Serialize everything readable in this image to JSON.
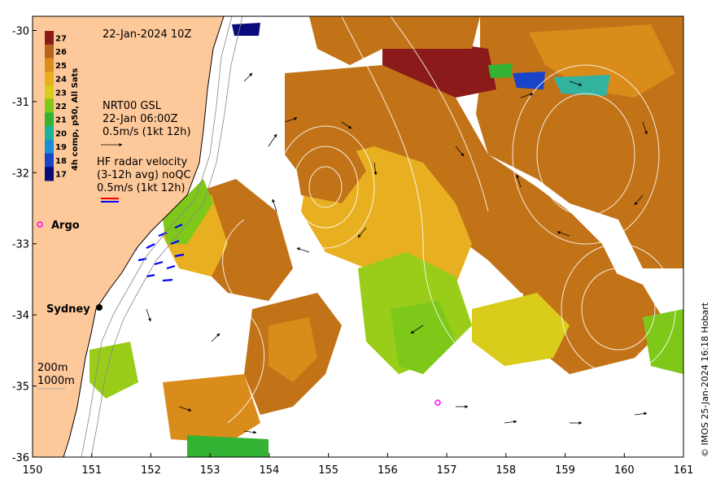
{
  "title_timestamp": "22-Jan-2024 10Z",
  "colorbar": {
    "label": "4h comp, p50, All Sats",
    "ticks": [
      "27",
      "26",
      "25",
      "24",
      "23",
      "22",
      "21",
      "20",
      "19",
      "18",
      "17"
    ],
    "colors": [
      "#8b1a1a",
      "#b5651d",
      "#d98c1a",
      "#e8b020",
      "#d9cc1a",
      "#7ec81a",
      "#33b233",
      "#1ab29a",
      "#1a8ed9",
      "#1a44c8",
      "#0a0a7a"
    ]
  },
  "legend_gsl": {
    "line1": "NRT00 GSL",
    "line2": "22-Jan 06:00Z",
    "line3": "0.5m/s (1kt 12h)"
  },
  "legend_hf": {
    "line1": "HF radar velocity",
    "line2": "(3-12h avg) noQC",
    "line3": "0.5m/s (1kt 12h)"
  },
  "labels": {
    "argo": "Argo",
    "sydney": "Sydney",
    "isobath_200": "200m",
    "isobath_1000": "1000m",
    "credit": "© IMOS 25-Jan-2024 16:18 Hobart"
  },
  "axes": {
    "x_ticks": [
      "150",
      "151",
      "152",
      "153",
      "154",
      "155",
      "156",
      "157",
      "158",
      "159",
      "160",
      "161"
    ],
    "y_ticks": [
      "-30",
      "-31",
      "-32",
      "-33",
      "-34",
      "-35",
      "-36"
    ],
    "xlim": [
      150,
      161
    ],
    "ylim": [
      -36,
      -29.8
    ]
  },
  "markers": {
    "argo_floats": [
      {
        "lon": 150.13,
        "lat": -32.72
      },
      {
        "lon": 156.9,
        "lat": -35.23
      }
    ],
    "sydney": {
      "lon": 151.2,
      "lat": -33.87
    }
  },
  "colors": {
    "land": "#fdc89a",
    "coast": "#000000",
    "hf_radar_a": "#0000ff",
    "hf_radar_b": "#ff0000",
    "argo": "#ff00ff",
    "isobath": "#888888"
  }
}
